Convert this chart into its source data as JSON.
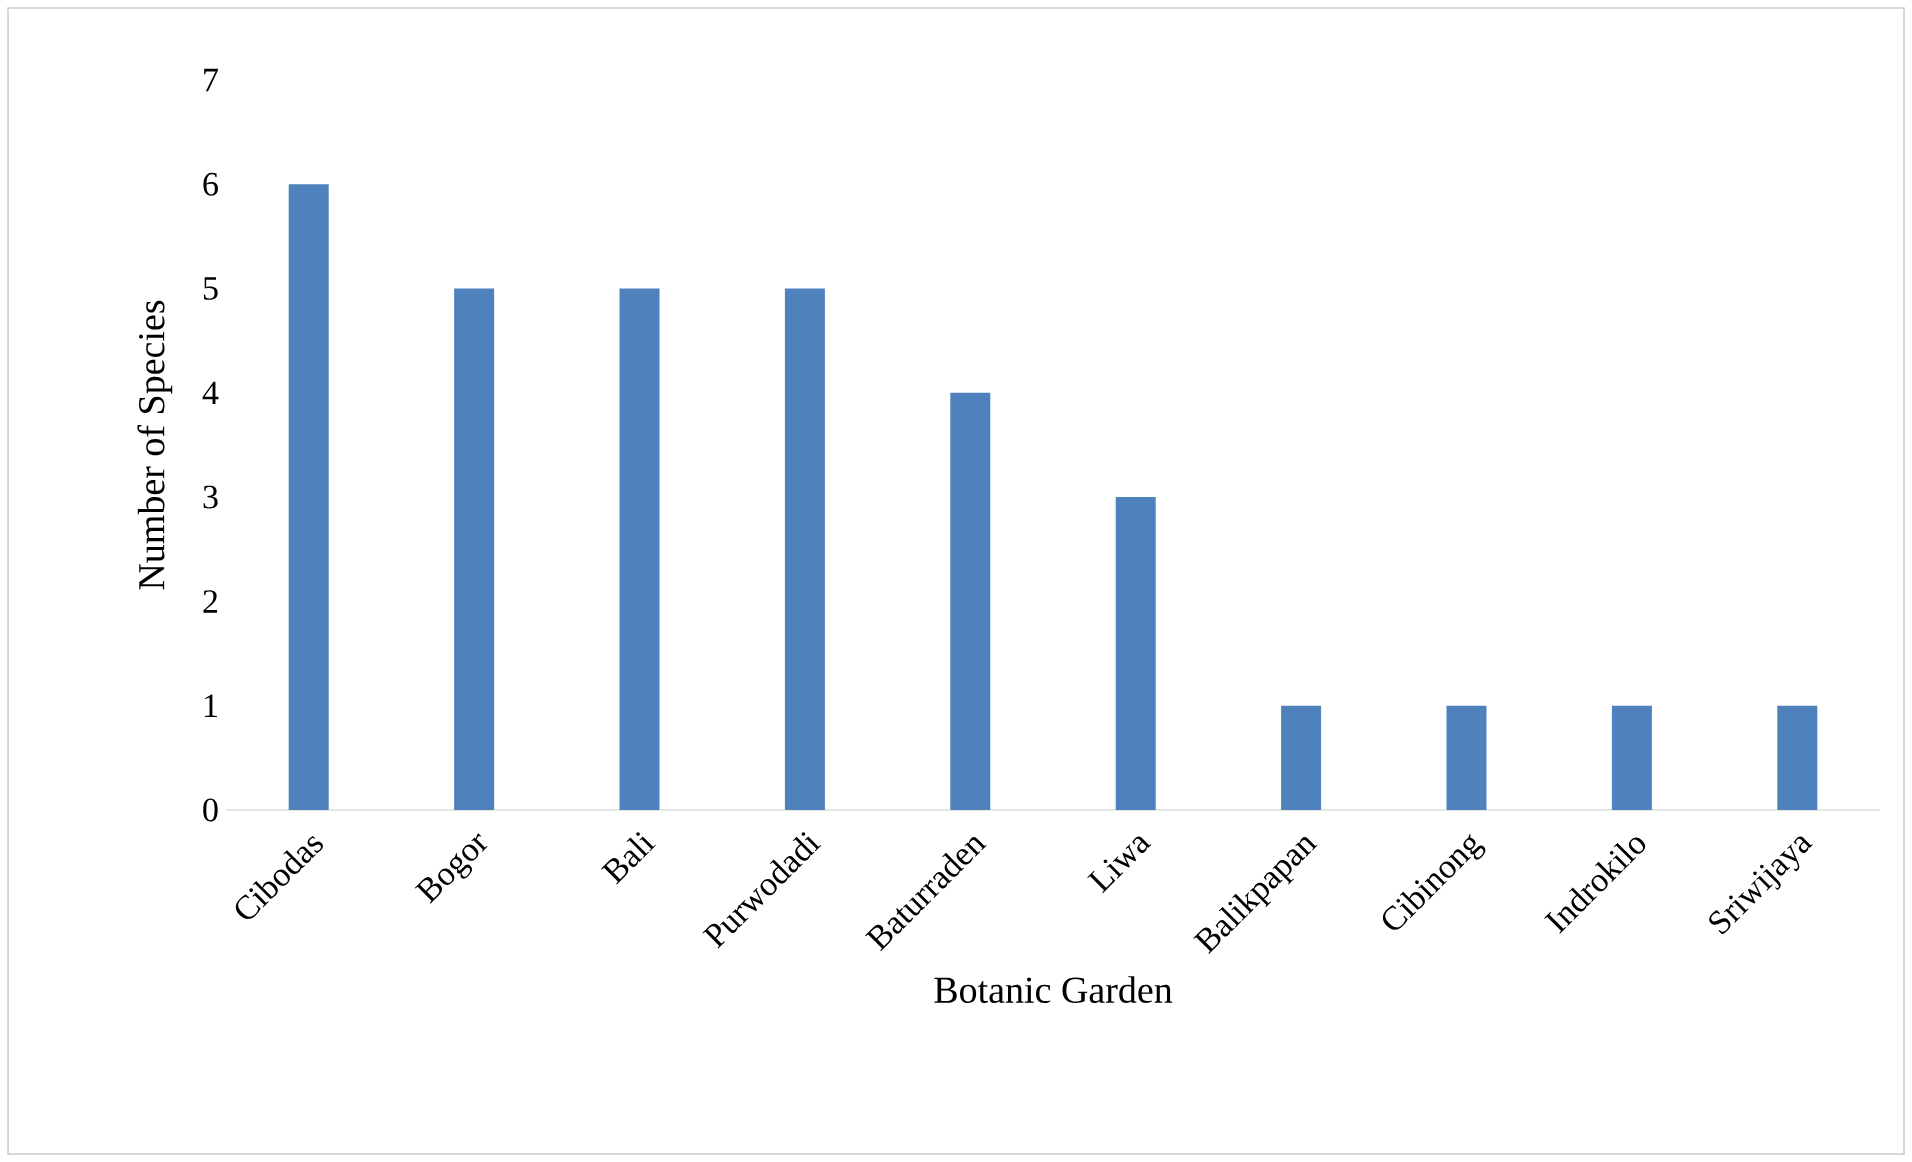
{
  "chart_data": {
    "type": "bar",
    "categories": [
      "Cibodas",
      "Bogor",
      "Bali",
      "Purwodadi",
      "Baturraden",
      "Liwa",
      "Balikpapan",
      "Cibinong",
      "Indrokilo",
      "Sriwijaya"
    ],
    "values": [
      6,
      5,
      5,
      5,
      4,
      3,
      1,
      1,
      1,
      1
    ],
    "color": "#4f81bd",
    "xlabel": "Botanic Garden",
    "ylabel": "Number of Species",
    "ylim": [
      0,
      7
    ],
    "yticks": [
      0,
      1,
      2,
      3,
      4,
      5,
      6,
      7
    ],
    "grid": false
  }
}
